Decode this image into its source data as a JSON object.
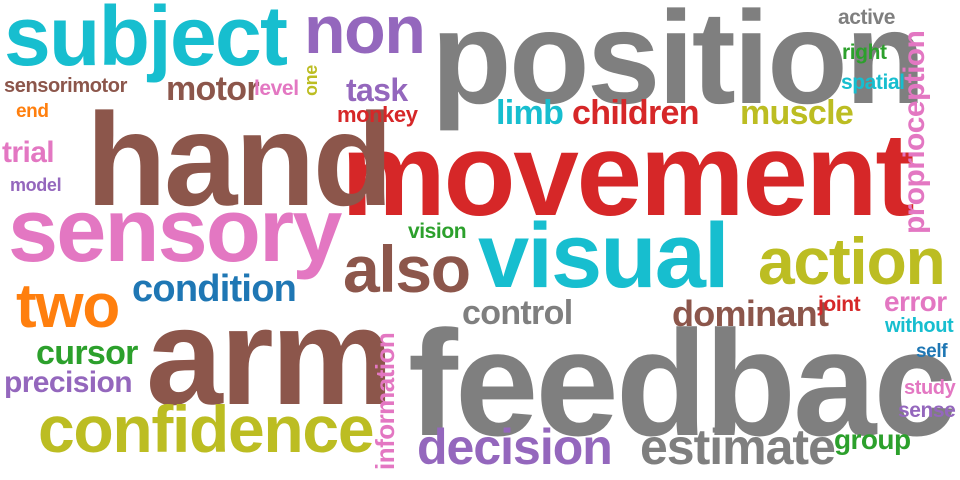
{
  "colors": {
    "grey": "#7f7f7f",
    "brown": "#8c564b",
    "red": "#d62728",
    "cyan": "#17becf",
    "pink": "#e377c2",
    "olive": "#bcbd22",
    "purple": "#9467bd",
    "blue": "#1f77b4",
    "orange": "#ff7f0e",
    "green": "#2ca02c"
  },
  "words": [
    {
      "text": "position",
      "color": "grey"
    },
    {
      "text": "movement",
      "color": "red"
    },
    {
      "text": "feedback",
      "color": "grey"
    },
    {
      "text": "hand",
      "color": "brown"
    },
    {
      "text": "arm",
      "color": "brown"
    },
    {
      "text": "subject",
      "color": "cyan"
    },
    {
      "text": "sensory",
      "color": "pink"
    },
    {
      "text": "visual",
      "color": "cyan"
    },
    {
      "text": "non",
      "color": "purple"
    },
    {
      "text": "confidence",
      "color": "olive"
    },
    {
      "text": "action",
      "color": "olive"
    },
    {
      "text": "also",
      "color": "brown"
    },
    {
      "text": "two",
      "color": "orange"
    },
    {
      "text": "decision",
      "color": "purple"
    },
    {
      "text": "estimate",
      "color": "grey"
    },
    {
      "text": "condition",
      "color": "blue"
    },
    {
      "text": "children",
      "color": "red"
    },
    {
      "text": "dominant",
      "color": "brown"
    },
    {
      "text": "control",
      "color": "grey"
    },
    {
      "text": "muscle",
      "color": "olive"
    },
    {
      "text": "cursor",
      "color": "green"
    },
    {
      "text": "precision",
      "color": "purple"
    },
    {
      "text": "proprioception",
      "color": "pink"
    },
    {
      "text": "information",
      "color": "pink"
    },
    {
      "text": "motor",
      "color": "brown"
    },
    {
      "text": "task",
      "color": "purple"
    },
    {
      "text": "limb",
      "color": "cyan"
    },
    {
      "text": "error",
      "color": "pink"
    },
    {
      "text": "group",
      "color": "green"
    },
    {
      "text": "trial",
      "color": "pink"
    },
    {
      "text": "monkey",
      "color": "red"
    },
    {
      "text": "sensorimotor",
      "color": "brown"
    },
    {
      "text": "active",
      "color": "grey"
    },
    {
      "text": "right",
      "color": "green"
    },
    {
      "text": "spatial",
      "color": "cyan"
    },
    {
      "text": "joint",
      "color": "red"
    },
    {
      "text": "without",
      "color": "cyan"
    },
    {
      "text": "study",
      "color": "pink"
    },
    {
      "text": "sense",
      "color": "purple"
    },
    {
      "text": "vision",
      "color": "green"
    },
    {
      "text": "level",
      "color": "pink"
    },
    {
      "text": "end",
      "color": "orange"
    },
    {
      "text": "model",
      "color": "purple"
    },
    {
      "text": "self",
      "color": "blue"
    },
    {
      "text": "one",
      "color": "olive"
    }
  ]
}
